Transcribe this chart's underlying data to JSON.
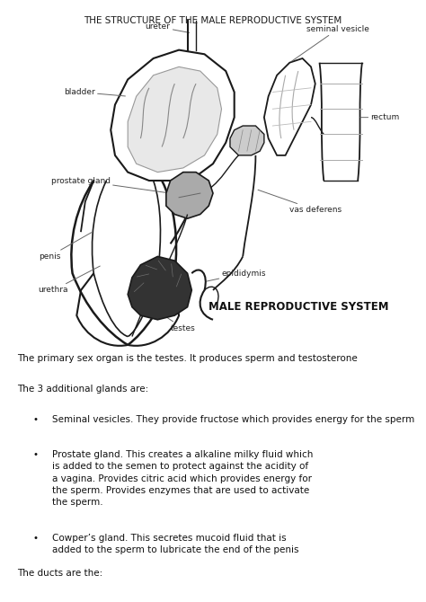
{
  "title": "THE STRUCTURE OF THE MALE REPRODUCTIVE SYSTEM",
  "diagram_label": "MALE REPRODUCTIVE SYSTEM",
  "bg_color": "#ffffff",
  "text_color": "#111111",
  "diagram_color": "#1a1a1a",
  "primary_text": "The primary sex organ is the testes. It produces sperm and testosterone",
  "additional_glands_header": "The 3 additional glands are:",
  "bullet1": "Seminal vesicles. They provide fructose which provides energy for the sperm",
  "bullet2_line1": "Prostate gland. This creates a alkaline milky fluid which",
  "bullet2_line2": "is added to the semen to protect against the acidity of",
  "bullet2_line3": "a vagina. Provides citric acid which provides energy for",
  "bullet2_line4": "the sperm. Provides enzymes that are used to activate",
  "bullet2_line5": "the sperm.",
  "bullet3_line1": "Cowper’s gland. This secretes mucoid fluid that is",
  "bullet3_line2": "added to the sperm to lubricate the end of the penis",
  "ducts_text": "The ducts are the:",
  "font_size_title": 7.5,
  "font_size_labels": 6.5,
  "font_size_body": 7.5,
  "font_size_diagram_label": 8.5,
  "label_color": "#222222",
  "line_color": "#555555"
}
